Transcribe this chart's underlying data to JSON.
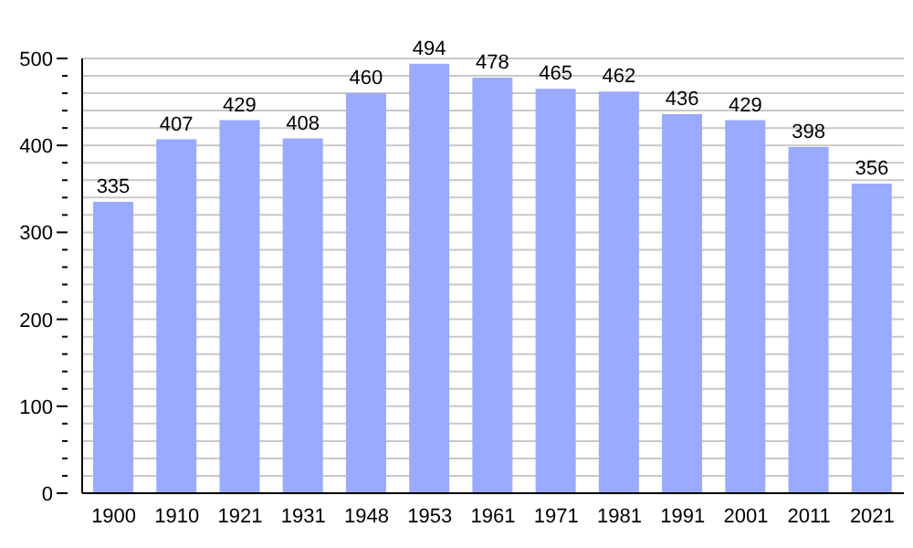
{
  "chart_data": {
    "type": "bar",
    "categories": [
      "1900",
      "1910",
      "1921",
      "1931",
      "1948",
      "1953",
      "1961",
      "1971",
      "1981",
      "1991",
      "2001",
      "2011",
      "2021"
    ],
    "values": [
      335,
      407,
      429,
      408,
      460,
      494,
      478,
      465,
      462,
      436,
      429,
      398,
      356
    ],
    "color": "#99aaff",
    "ylim": [
      0,
      500
    ],
    "yticks": [
      0,
      {
        "value": 20,
        "label": null
      },
      {
        "value": 40,
        "label": null
      },
      {
        "value": 60,
        "label": null
      },
      {
        "value": 80,
        "label": null
      },
      100,
      {
        "value": 120,
        "label": null
      },
      {
        "value": 140,
        "label": null
      },
      {
        "value": 160,
        "label": null
      },
      {
        "value": 180,
        "label": null
      },
      200,
      {
        "value": 220,
        "label": null
      },
      {
        "value": 240,
        "label": null
      },
      {
        "value": 260,
        "label": null
      },
      {
        "value": 280,
        "label": null
      },
      300,
      {
        "value": 320,
        "label": null
      },
      {
        "value": 340,
        "label": null
      },
      {
        "value": 360,
        "label": null
      },
      {
        "value": 380,
        "label": null
      },
      400,
      {
        "value": 420,
        "label": null
      },
      {
        "value": 440,
        "label": null
      },
      {
        "value": 460,
        "label": null
      },
      {
        "value": 480,
        "label": null
      },
      500
    ],
    "grid": "y",
    "data_labels": true
  }
}
